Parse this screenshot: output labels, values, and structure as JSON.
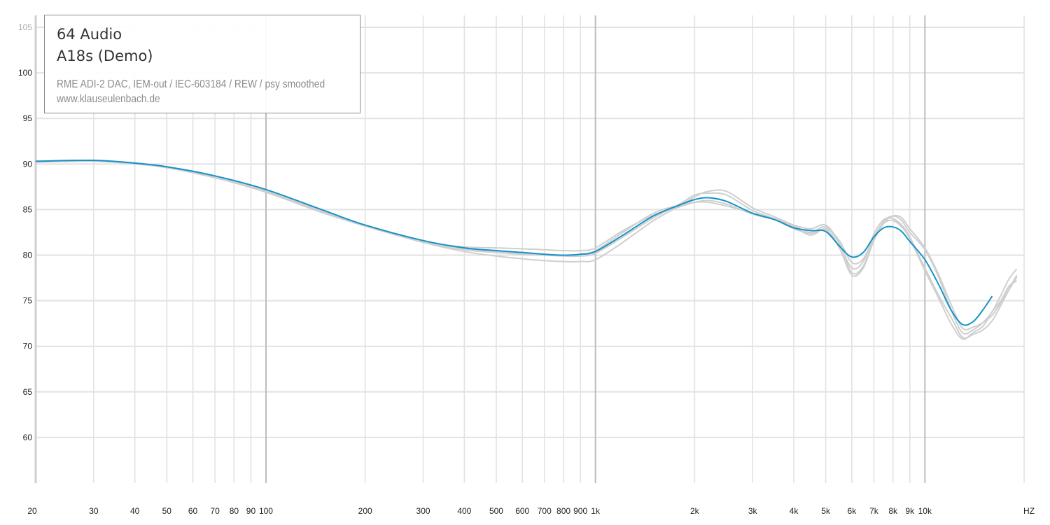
{
  "legend": {
    "brand": "64 Audio",
    "model": "A18s (Demo)",
    "setup": "RME ADI-2 DAC, IEM-out / IEC-603184 / REW / psy smoothed",
    "url": "www.klauseulenbach.de"
  },
  "colors": {
    "main_curve": "#1593c8",
    "sample_curves": "#cfcfcf",
    "grid_minor": "#e2e2e2",
    "grid_major": "#bdbdbd"
  },
  "chart_data": {
    "type": "line",
    "title": "",
    "xlabel": "",
    "ylabel": "",
    "x_scale": "log",
    "xlim": [
      20,
      20000
    ],
    "ylim": [
      55,
      108
    ],
    "grid": true,
    "legend_placement": "top-left",
    "y_ticks": [
      60,
      65,
      70,
      75,
      80,
      85,
      90,
      95,
      100,
      105
    ],
    "x_ticks": [
      {
        "value": 20,
        "label": "20"
      },
      {
        "value": 30,
        "label": "30"
      },
      {
        "value": 40,
        "label": "40"
      },
      {
        "value": 50,
        "label": "50"
      },
      {
        "value": 60,
        "label": "60"
      },
      {
        "value": 70,
        "label": "70"
      },
      {
        "value": 80,
        "label": "80"
      },
      {
        "value": 90,
        "label": "90"
      },
      {
        "value": 100,
        "label": "100"
      },
      {
        "value": 200,
        "label": "200"
      },
      {
        "value": 300,
        "label": "300"
      },
      {
        "value": 400,
        "label": "400"
      },
      {
        "value": 500,
        "label": "500"
      },
      {
        "value": 600,
        "label": "600"
      },
      {
        "value": 700,
        "label": "700"
      },
      {
        "value": 800,
        "label": "800"
      },
      {
        "value": 900,
        "label": "900"
      },
      {
        "value": 1000,
        "label": "1k"
      },
      {
        "value": 2000,
        "label": "2k"
      },
      {
        "value": 3000,
        "label": "3k"
      },
      {
        "value": 4000,
        "label": "4k"
      },
      {
        "value": 5000,
        "label": "5k"
      },
      {
        "value": 6000,
        "label": "6k"
      },
      {
        "value": 7000,
        "label": "7k"
      },
      {
        "value": 8000,
        "label": "8k"
      },
      {
        "value": 9000,
        "label": "9k"
      },
      {
        "value": 10000,
        "label": "10k"
      }
    ],
    "x_unit_label": "HZ",
    "series": [
      {
        "role": "main",
        "x": [
          20,
          30,
          40,
          50,
          70,
          100,
          150,
          200,
          300,
          400,
          500,
          600,
          700,
          800,
          900,
          1000,
          1200,
          1500,
          1800,
          2000,
          2200,
          2500,
          3000,
          3500,
          4000,
          4500,
          5000,
          5500,
          6000,
          6500,
          7000,
          7500,
          8000,
          8500,
          9000,
          10000,
          11000,
          12000,
          13000,
          14000,
          15000,
          16000
        ],
        "values": [
          90.3,
          90.4,
          90.1,
          89.7,
          88.7,
          87.2,
          84.9,
          83.3,
          81.6,
          80.8,
          80.5,
          80.3,
          80.1,
          80.0,
          80.1,
          80.4,
          82.1,
          84.3,
          85.5,
          86.1,
          86.3,
          85.9,
          84.6,
          83.9,
          83.0,
          82.7,
          82.6,
          81.0,
          79.8,
          80.3,
          82.0,
          83.0,
          83.1,
          82.6,
          81.5,
          79.5,
          76.8,
          74.0,
          72.4,
          72.7,
          74.0,
          75.5
        ]
      },
      {
        "role": "sample",
        "x": [
          20,
          30,
          40,
          50,
          70,
          100,
          150,
          200,
          300,
          400,
          500,
          600,
          700,
          800,
          900,
          1000,
          1200,
          1500,
          1800,
          2000,
          2200,
          2500,
          3000,
          3500,
          4000,
          4500,
          5000,
          5500,
          6000,
          6500,
          7000,
          7500,
          8000,
          8500,
          9000,
          10000,
          11000,
          12000,
          13000,
          14000,
          15000,
          16000,
          17000,
          18000,
          19000
        ],
        "values": [
          90.3,
          90.4,
          90.1,
          89.6,
          88.5,
          87.0,
          84.7,
          83.2,
          81.4,
          80.4,
          79.9,
          79.6,
          79.4,
          79.3,
          79.3,
          79.5,
          81.3,
          83.8,
          85.4,
          86.4,
          87.0,
          87.0,
          85.2,
          84.2,
          83.3,
          82.9,
          83.3,
          81.3,
          78.1,
          78.8,
          81.8,
          83.7,
          84.3,
          83.8,
          82.5,
          80.6,
          77.6,
          74.0,
          71.5,
          71.8,
          72.6,
          73.8,
          75.6,
          77.4,
          78.5
        ]
      },
      {
        "role": "sample",
        "x": [
          20,
          30,
          40,
          50,
          70,
          100,
          150,
          200,
          300,
          400,
          500,
          600,
          700,
          800,
          900,
          1000,
          1200,
          1500,
          1800,
          2000,
          2200,
          2500,
          3000,
          3500,
          4000,
          4500,
          5000,
          5500,
          6000,
          6500,
          7000,
          7500,
          8000,
          8500,
          9000,
          10000,
          11000,
          12000,
          13000,
          14000,
          15000,
          16000,
          17000,
          18000,
          19000
        ],
        "values": [
          90.3,
          90.4,
          90.1,
          89.7,
          88.6,
          87.1,
          84.8,
          83.3,
          81.5,
          80.9,
          80.8,
          80.7,
          80.6,
          80.5,
          80.5,
          80.8,
          82.6,
          84.4,
          85.3,
          85.8,
          86.0,
          85.6,
          84.5,
          83.9,
          83.1,
          82.2,
          82.9,
          81.6,
          79.2,
          79.6,
          82.0,
          83.5,
          83.8,
          83.1,
          81.8,
          78.3,
          75.3,
          72.5,
          70.8,
          71.5,
          72.2,
          73.8,
          75.0,
          76.6,
          77.2
        ]
      },
      {
        "role": "sample",
        "x": [
          20,
          30,
          40,
          50,
          70,
          100,
          150,
          200,
          300,
          400,
          500,
          600,
          700,
          800,
          900,
          1000,
          1200,
          1500,
          1800,
          2000,
          2200,
          2500,
          3000,
          3500,
          4000,
          4500,
          5000,
          5500,
          6000,
          6500,
          7000,
          7500,
          8000,
          8500,
          9000,
          10000,
          11000,
          12000,
          13000,
          14000,
          15000,
          16000,
          17000,
          18000,
          19000
        ],
        "values": [
          90.2,
          90.3,
          90.0,
          89.6,
          88.5,
          86.9,
          84.6,
          83.2,
          81.5,
          80.6,
          80.3,
          80.1,
          80.0,
          79.9,
          79.9,
          80.2,
          81.9,
          84.1,
          85.6,
          86.6,
          86.8,
          86.6,
          84.9,
          84.0,
          83.2,
          82.5,
          83.1,
          81.2,
          78.6,
          79.3,
          82.3,
          83.9,
          84.0,
          83.3,
          82.0,
          78.6,
          75.6,
          73.2,
          71.0,
          71.3,
          71.8,
          72.8,
          74.5,
          76.2,
          77.6
        ]
      },
      {
        "role": "sample",
        "x": [
          20,
          30,
          40,
          50,
          70,
          100,
          150,
          200,
          300,
          400,
          500,
          600,
          700,
          800,
          900,
          1000,
          1200,
          1500,
          1800,
          2000,
          2200,
          2500,
          3000,
          3500,
          4000,
          4500,
          5000,
          5500,
          6000,
          6500,
          7000,
          7500,
          8000,
          8500,
          9000,
          10000,
          11000,
          12000,
          13000,
          14000,
          15000,
          16000,
          17000,
          18000,
          19000
        ],
        "values": [
          90.3,
          90.4,
          90.1,
          89.6,
          88.6,
          87.1,
          84.8,
          83.3,
          81.6,
          80.7,
          80.4,
          80.2,
          80.1,
          80.0,
          80.1,
          80.5,
          82.4,
          84.6,
          85.5,
          85.8,
          85.8,
          85.4,
          84.6,
          83.9,
          82.9,
          82.4,
          82.8,
          80.8,
          77.8,
          78.6,
          81.6,
          83.5,
          84.3,
          84.1,
          82.9,
          80.8,
          77.9,
          74.6,
          72.0,
          72.1,
          72.6,
          73.4,
          74.8,
          76.3,
          77.8
        ]
      }
    ]
  }
}
